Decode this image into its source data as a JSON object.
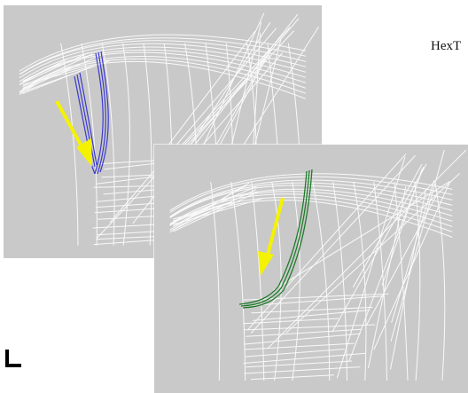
{
  "caption": "HexT",
  "colors": {
    "panel_background": "#c9c9c9",
    "wireframe": "#ffffff",
    "arrow": "#f5f200",
    "selection_back": "#3a3ad0",
    "selection_front": "#1f7a2a"
  },
  "panels": [
    {
      "id": "back",
      "selection_color": "selection_back",
      "icon": "arrow-icon"
    },
    {
      "id": "front",
      "selection_color": "selection_front",
      "icon": "arrow-icon"
    }
  ]
}
